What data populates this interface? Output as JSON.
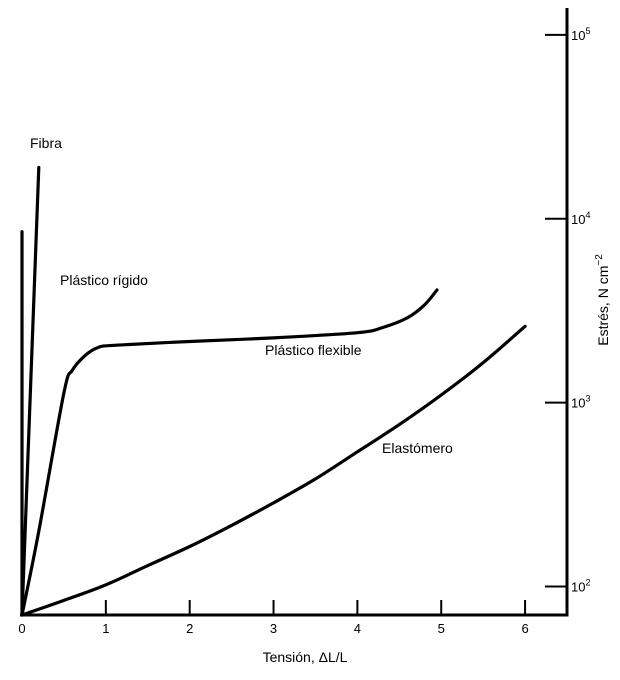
{
  "chart_data": {
    "type": "line",
    "title": "",
    "xlabel": "Tensión, ΔL/L",
    "ylabel": "Estrés, N cm",
    "ylabel_exponent": "−2",
    "xlim": [
      0,
      6.5
    ],
    "ylim": [
      70,
      140000
    ],
    "yscale": "log",
    "x_ticks": [
      "0",
      "1",
      "2",
      "3",
      "4",
      "5",
      "6"
    ],
    "y_ticks": [
      {
        "value": 100,
        "base": "10",
        "exp": "2"
      },
      {
        "value": 1000,
        "base": "10",
        "exp": "3"
      },
      {
        "value": 10000,
        "base": "10",
        "exp": "4"
      },
      {
        "value": 100000,
        "base": "10",
        "exp": "5"
      }
    ],
    "grid": false,
    "series": [
      {
        "name": "Fibra",
        "x": [
          0.0,
          0.2
        ],
        "y": [
          70,
          19000
        ]
      },
      {
        "name": "Plástico rígido",
        "x": [
          0.0,
          0.0
        ],
        "y": [
          70,
          8500
        ]
      },
      {
        "name": "Plástico flexible",
        "x": [
          0.0,
          0.2,
          0.5,
          0.6,
          0.75,
          0.9,
          1.1,
          2.0,
          3.0,
          4.0,
          4.3,
          4.6,
          4.8,
          4.95
        ],
        "y": [
          70,
          200,
          1130,
          1500,
          1800,
          1990,
          2050,
          2150,
          2250,
          2400,
          2560,
          2900,
          3400,
          4100
        ]
      },
      {
        "name": "Elastómero",
        "x": [
          0.0,
          0.5,
          1.0,
          1.5,
          2.0,
          2.5,
          3.0,
          3.5,
          4.0,
          4.5,
          5.0,
          5.5,
          6.0
        ],
        "y": [
          70,
          84,
          102,
          130,
          165,
          215,
          285,
          385,
          540,
          760,
          1100,
          1650,
          2600
        ]
      }
    ]
  }
}
